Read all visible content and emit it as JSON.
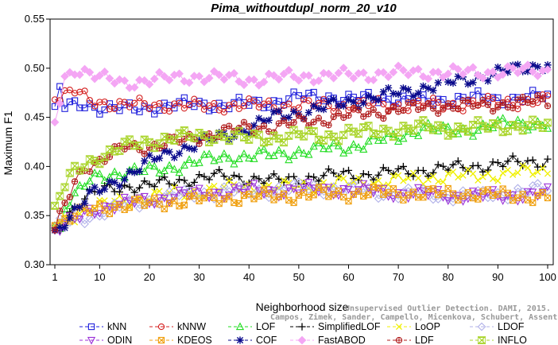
{
  "chart_data": {
    "type": "line",
    "title": "Pima_withoutdupl_norm_20_v10",
    "xlabel": "Neighborhood size",
    "ylabel": "Maximum F1",
    "xlim": [
      1,
      100
    ],
    "ylim": [
      0.3,
      0.55
    ],
    "xticks": [
      1,
      10,
      20,
      30,
      40,
      50,
      60,
      70,
      80,
      90,
      100
    ],
    "yticks": [
      0.3,
      0.35,
      0.4,
      0.45,
      0.5,
      0.55
    ],
    "ytick_labels": [
      "0.30",
      "0.35",
      "0.40",
      "0.45",
      "0.50",
      "0.55"
    ],
    "grid": false,
    "legend_position": "bottom",
    "watermark": {
      "line1": "Unsupervised Outlier Detection. DAMI, 2015.",
      "line2": "Campos, Zimek, Sander, Campello, Micenkova, Schubert, Assent, Houle"
    },
    "series": [
      {
        "name": "kNN",
        "color": "#1f1fdc",
        "marker": "square",
        "points": [
          [
            1,
            0.461
          ],
          [
            2,
            0.48
          ],
          [
            3,
            0.46
          ],
          [
            5,
            0.462
          ],
          [
            7,
            0.464
          ],
          [
            10,
            0.46
          ],
          [
            15,
            0.458
          ],
          [
            20,
            0.46
          ],
          [
            25,
            0.462
          ],
          [
            30,
            0.464
          ],
          [
            35,
            0.462
          ],
          [
            40,
            0.464
          ],
          [
            45,
            0.466
          ],
          [
            50,
            0.47
          ],
          [
            55,
            0.472
          ],
          [
            60,
            0.468
          ],
          [
            65,
            0.47
          ],
          [
            70,
            0.468
          ],
          [
            75,
            0.466
          ],
          [
            80,
            0.468
          ],
          [
            85,
            0.47
          ],
          [
            90,
            0.468
          ],
          [
            95,
            0.47
          ],
          [
            100,
            0.471
          ]
        ]
      },
      {
        "name": "kNNW",
        "color": "#d42020",
        "marker": "circle",
        "points": [
          [
            1,
            0.468
          ],
          [
            3,
            0.472
          ],
          [
            5,
            0.476
          ],
          [
            8,
            0.468
          ],
          [
            10,
            0.466
          ],
          [
            12,
            0.464
          ],
          [
            15,
            0.462
          ],
          [
            20,
            0.463
          ],
          [
            25,
            0.462
          ],
          [
            30,
            0.461
          ],
          [
            35,
            0.462
          ],
          [
            40,
            0.462
          ],
          [
            45,
            0.463
          ],
          [
            50,
            0.462
          ],
          [
            55,
            0.463
          ],
          [
            60,
            0.462
          ],
          [
            65,
            0.463
          ],
          [
            70,
            0.462
          ],
          [
            75,
            0.463
          ],
          [
            80,
            0.462
          ],
          [
            85,
            0.464
          ],
          [
            90,
            0.465
          ],
          [
            95,
            0.466
          ],
          [
            100,
            0.467
          ]
        ]
      },
      {
        "name": "LOF",
        "color": "#22dd22",
        "marker": "triangle",
        "points": [
          [
            1,
            0.34
          ],
          [
            2,
            0.335
          ],
          [
            3,
            0.36
          ],
          [
            5,
            0.37
          ],
          [
            8,
            0.385
          ],
          [
            10,
            0.39
          ],
          [
            15,
            0.395
          ],
          [
            20,
            0.395
          ],
          [
            25,
            0.4
          ],
          [
            30,
            0.405
          ],
          [
            35,
            0.41
          ],
          [
            40,
            0.41
          ],
          [
            45,
            0.412
          ],
          [
            50,
            0.415
          ],
          [
            55,
            0.418
          ],
          [
            60,
            0.42
          ],
          [
            65,
            0.425
          ],
          [
            70,
            0.43
          ],
          [
            75,
            0.44
          ],
          [
            80,
            0.435
          ],
          [
            85,
            0.438
          ],
          [
            90,
            0.442
          ],
          [
            95,
            0.445
          ],
          [
            100,
            0.442
          ]
        ]
      },
      {
        "name": "SimplifiedLOF",
        "color": "#000000",
        "marker": "plus",
        "points": [
          [
            1,
            0.335
          ],
          [
            3,
            0.345
          ],
          [
            5,
            0.36
          ],
          [
            8,
            0.37
          ],
          [
            10,
            0.375
          ],
          [
            15,
            0.38
          ],
          [
            20,
            0.38
          ],
          [
            25,
            0.385
          ],
          [
            30,
            0.388
          ],
          [
            35,
            0.39
          ],
          [
            40,
            0.388
          ],
          [
            45,
            0.385
          ],
          [
            50,
            0.388
          ],
          [
            55,
            0.39
          ],
          [
            60,
            0.392
          ],
          [
            65,
            0.392
          ],
          [
            70,
            0.394
          ],
          [
            75,
            0.396
          ],
          [
            80,
            0.398
          ],
          [
            85,
            0.4
          ],
          [
            90,
            0.402
          ],
          [
            95,
            0.404
          ],
          [
            100,
            0.406
          ]
        ]
      },
      {
        "name": "LoOP",
        "color": "#f0f000",
        "marker": "x",
        "points": [
          [
            1,
            0.34
          ],
          [
            3,
            0.345
          ],
          [
            5,
            0.35
          ],
          [
            8,
            0.358
          ],
          [
            10,
            0.36
          ],
          [
            15,
            0.365
          ],
          [
            20,
            0.37
          ],
          [
            25,
            0.372
          ],
          [
            30,
            0.375
          ],
          [
            35,
            0.378
          ],
          [
            40,
            0.38
          ],
          [
            45,
            0.378
          ],
          [
            50,
            0.38
          ],
          [
            55,
            0.382
          ],
          [
            60,
            0.383
          ],
          [
            65,
            0.384
          ],
          [
            70,
            0.386
          ],
          [
            75,
            0.388
          ],
          [
            80,
            0.39
          ],
          [
            85,
            0.39
          ],
          [
            90,
            0.392
          ],
          [
            95,
            0.394
          ],
          [
            100,
            0.396
          ]
        ]
      },
      {
        "name": "LDOF",
        "color": "#b0b0e8",
        "marker": "diamond",
        "points": [
          [
            1,
            0.34
          ],
          [
            3,
            0.342
          ],
          [
            5,
            0.345
          ],
          [
            8,
            0.35
          ],
          [
            10,
            0.352
          ],
          [
            15,
            0.36
          ],
          [
            20,
            0.365
          ],
          [
            25,
            0.37
          ],
          [
            30,
            0.372
          ],
          [
            35,
            0.375
          ],
          [
            40,
            0.374
          ],
          [
            45,
            0.376
          ],
          [
            50,
            0.378
          ],
          [
            55,
            0.378
          ],
          [
            60,
            0.376
          ],
          [
            65,
            0.374
          ],
          [
            70,
            0.372
          ],
          [
            75,
            0.372
          ],
          [
            80,
            0.37
          ],
          [
            85,
            0.37
          ],
          [
            90,
            0.372
          ],
          [
            95,
            0.374
          ],
          [
            100,
            0.378
          ]
        ]
      },
      {
        "name": "ODIN",
        "color": "#9b30d8",
        "marker": "triangle-down",
        "points": [
          [
            1,
            0.335
          ],
          [
            3,
            0.34
          ],
          [
            5,
            0.345
          ],
          [
            8,
            0.355
          ],
          [
            10,
            0.358
          ],
          [
            15,
            0.362
          ],
          [
            20,
            0.366
          ],
          [
            25,
            0.37
          ],
          [
            30,
            0.372
          ],
          [
            35,
            0.374
          ],
          [
            40,
            0.376
          ],
          [
            45,
            0.375
          ],
          [
            50,
            0.376
          ],
          [
            55,
            0.377
          ],
          [
            60,
            0.376
          ],
          [
            65,
            0.375
          ],
          [
            70,
            0.373
          ],
          [
            75,
            0.372
          ],
          [
            80,
            0.371
          ],
          [
            85,
            0.37
          ],
          [
            90,
            0.37
          ],
          [
            95,
            0.371
          ],
          [
            100,
            0.372
          ]
        ]
      },
      {
        "name": "KDEOS",
        "color": "#f0a010",
        "marker": "square-x",
        "points": [
          [
            1,
            0.34
          ],
          [
            3,
            0.345
          ],
          [
            5,
            0.35
          ],
          [
            8,
            0.355
          ],
          [
            10,
            0.358
          ],
          [
            15,
            0.36
          ],
          [
            20,
            0.362
          ],
          [
            25,
            0.364
          ],
          [
            30,
            0.366
          ],
          [
            35,
            0.368
          ],
          [
            40,
            0.368
          ],
          [
            45,
            0.37
          ],
          [
            50,
            0.37
          ],
          [
            55,
            0.372
          ],
          [
            60,
            0.372
          ],
          [
            65,
            0.373
          ],
          [
            70,
            0.373
          ],
          [
            75,
            0.372
          ],
          [
            80,
            0.372
          ],
          [
            85,
            0.372
          ],
          [
            90,
            0.371
          ],
          [
            95,
            0.37
          ],
          [
            100,
            0.369
          ]
        ]
      },
      {
        "name": "COF",
        "color": "#0a0a8c",
        "marker": "asterisk",
        "points": [
          [
            1,
            0.335
          ],
          [
            3,
            0.345
          ],
          [
            5,
            0.355
          ],
          [
            8,
            0.37
          ],
          [
            10,
            0.375
          ],
          [
            15,
            0.39
          ],
          [
            20,
            0.405
          ],
          [
            25,
            0.415
          ],
          [
            30,
            0.425
          ],
          [
            35,
            0.43
          ],
          [
            40,
            0.44
          ],
          [
            45,
            0.45
          ],
          [
            50,
            0.455
          ],
          [
            55,
            0.46
          ],
          [
            60,
            0.465
          ],
          [
            65,
            0.47
          ],
          [
            70,
            0.475
          ],
          [
            75,
            0.48
          ],
          [
            80,
            0.485
          ],
          [
            85,
            0.49
          ],
          [
            90,
            0.495
          ],
          [
            95,
            0.5
          ],
          [
            100,
            0.505
          ]
        ]
      },
      {
        "name": "FastABOD",
        "color": "#f4a6f4",
        "marker": "diamond-filled",
        "points": [
          [
            1,
            0.445
          ],
          [
            3,
            0.49
          ],
          [
            5,
            0.5
          ],
          [
            8,
            0.495
          ],
          [
            10,
            0.49
          ],
          [
            15,
            0.485
          ],
          [
            20,
            0.488
          ],
          [
            25,
            0.49
          ],
          [
            30,
            0.492
          ],
          [
            35,
            0.49
          ],
          [
            40,
            0.488
          ],
          [
            45,
            0.49
          ],
          [
            50,
            0.492
          ],
          [
            55,
            0.492
          ],
          [
            60,
            0.493
          ],
          [
            65,
            0.494
          ],
          [
            70,
            0.495
          ],
          [
            75,
            0.496
          ],
          [
            80,
            0.495
          ],
          [
            85,
            0.496
          ],
          [
            90,
            0.496
          ],
          [
            95,
            0.497
          ],
          [
            100,
            0.498
          ]
        ]
      },
      {
        "name": "LDF",
        "color": "#b01c1c",
        "marker": "circle-plus",
        "points": [
          [
            1,
            0.335
          ],
          [
            3,
            0.36
          ],
          [
            5,
            0.385
          ],
          [
            7,
            0.4
          ],
          [
            10,
            0.405
          ],
          [
            12,
            0.41
          ],
          [
            15,
            0.42
          ],
          [
            20,
            0.42
          ],
          [
            25,
            0.425
          ],
          [
            30,
            0.43
          ],
          [
            35,
            0.435
          ],
          [
            40,
            0.44
          ],
          [
            45,
            0.44
          ],
          [
            50,
            0.445
          ],
          [
            55,
            0.448
          ],
          [
            60,
            0.452
          ],
          [
            65,
            0.455
          ],
          [
            70,
            0.458
          ],
          [
            75,
            0.46
          ],
          [
            80,
            0.462
          ],
          [
            85,
            0.462
          ],
          [
            90,
            0.463
          ],
          [
            95,
            0.465
          ],
          [
            100,
            0.467
          ]
        ]
      },
      {
        "name": "INFLO",
        "color": "#a8d428",
        "marker": "hourglass",
        "points": [
          [
            1,
            0.36
          ],
          [
            3,
            0.38
          ],
          [
            5,
            0.395
          ],
          [
            8,
            0.405
          ],
          [
            10,
            0.41
          ],
          [
            15,
            0.42
          ],
          [
            20,
            0.425
          ],
          [
            25,
            0.43
          ],
          [
            30,
            0.43
          ],
          [
            35,
            0.432
          ],
          [
            40,
            0.428
          ],
          [
            45,
            0.43
          ],
          [
            50,
            0.432
          ],
          [
            55,
            0.43
          ],
          [
            60,
            0.435
          ],
          [
            65,
            0.435
          ],
          [
            70,
            0.438
          ],
          [
            75,
            0.44
          ],
          [
            80,
            0.438
          ],
          [
            85,
            0.44
          ],
          [
            90,
            0.44
          ],
          [
            95,
            0.442
          ],
          [
            100,
            0.44
          ]
        ]
      }
    ]
  }
}
